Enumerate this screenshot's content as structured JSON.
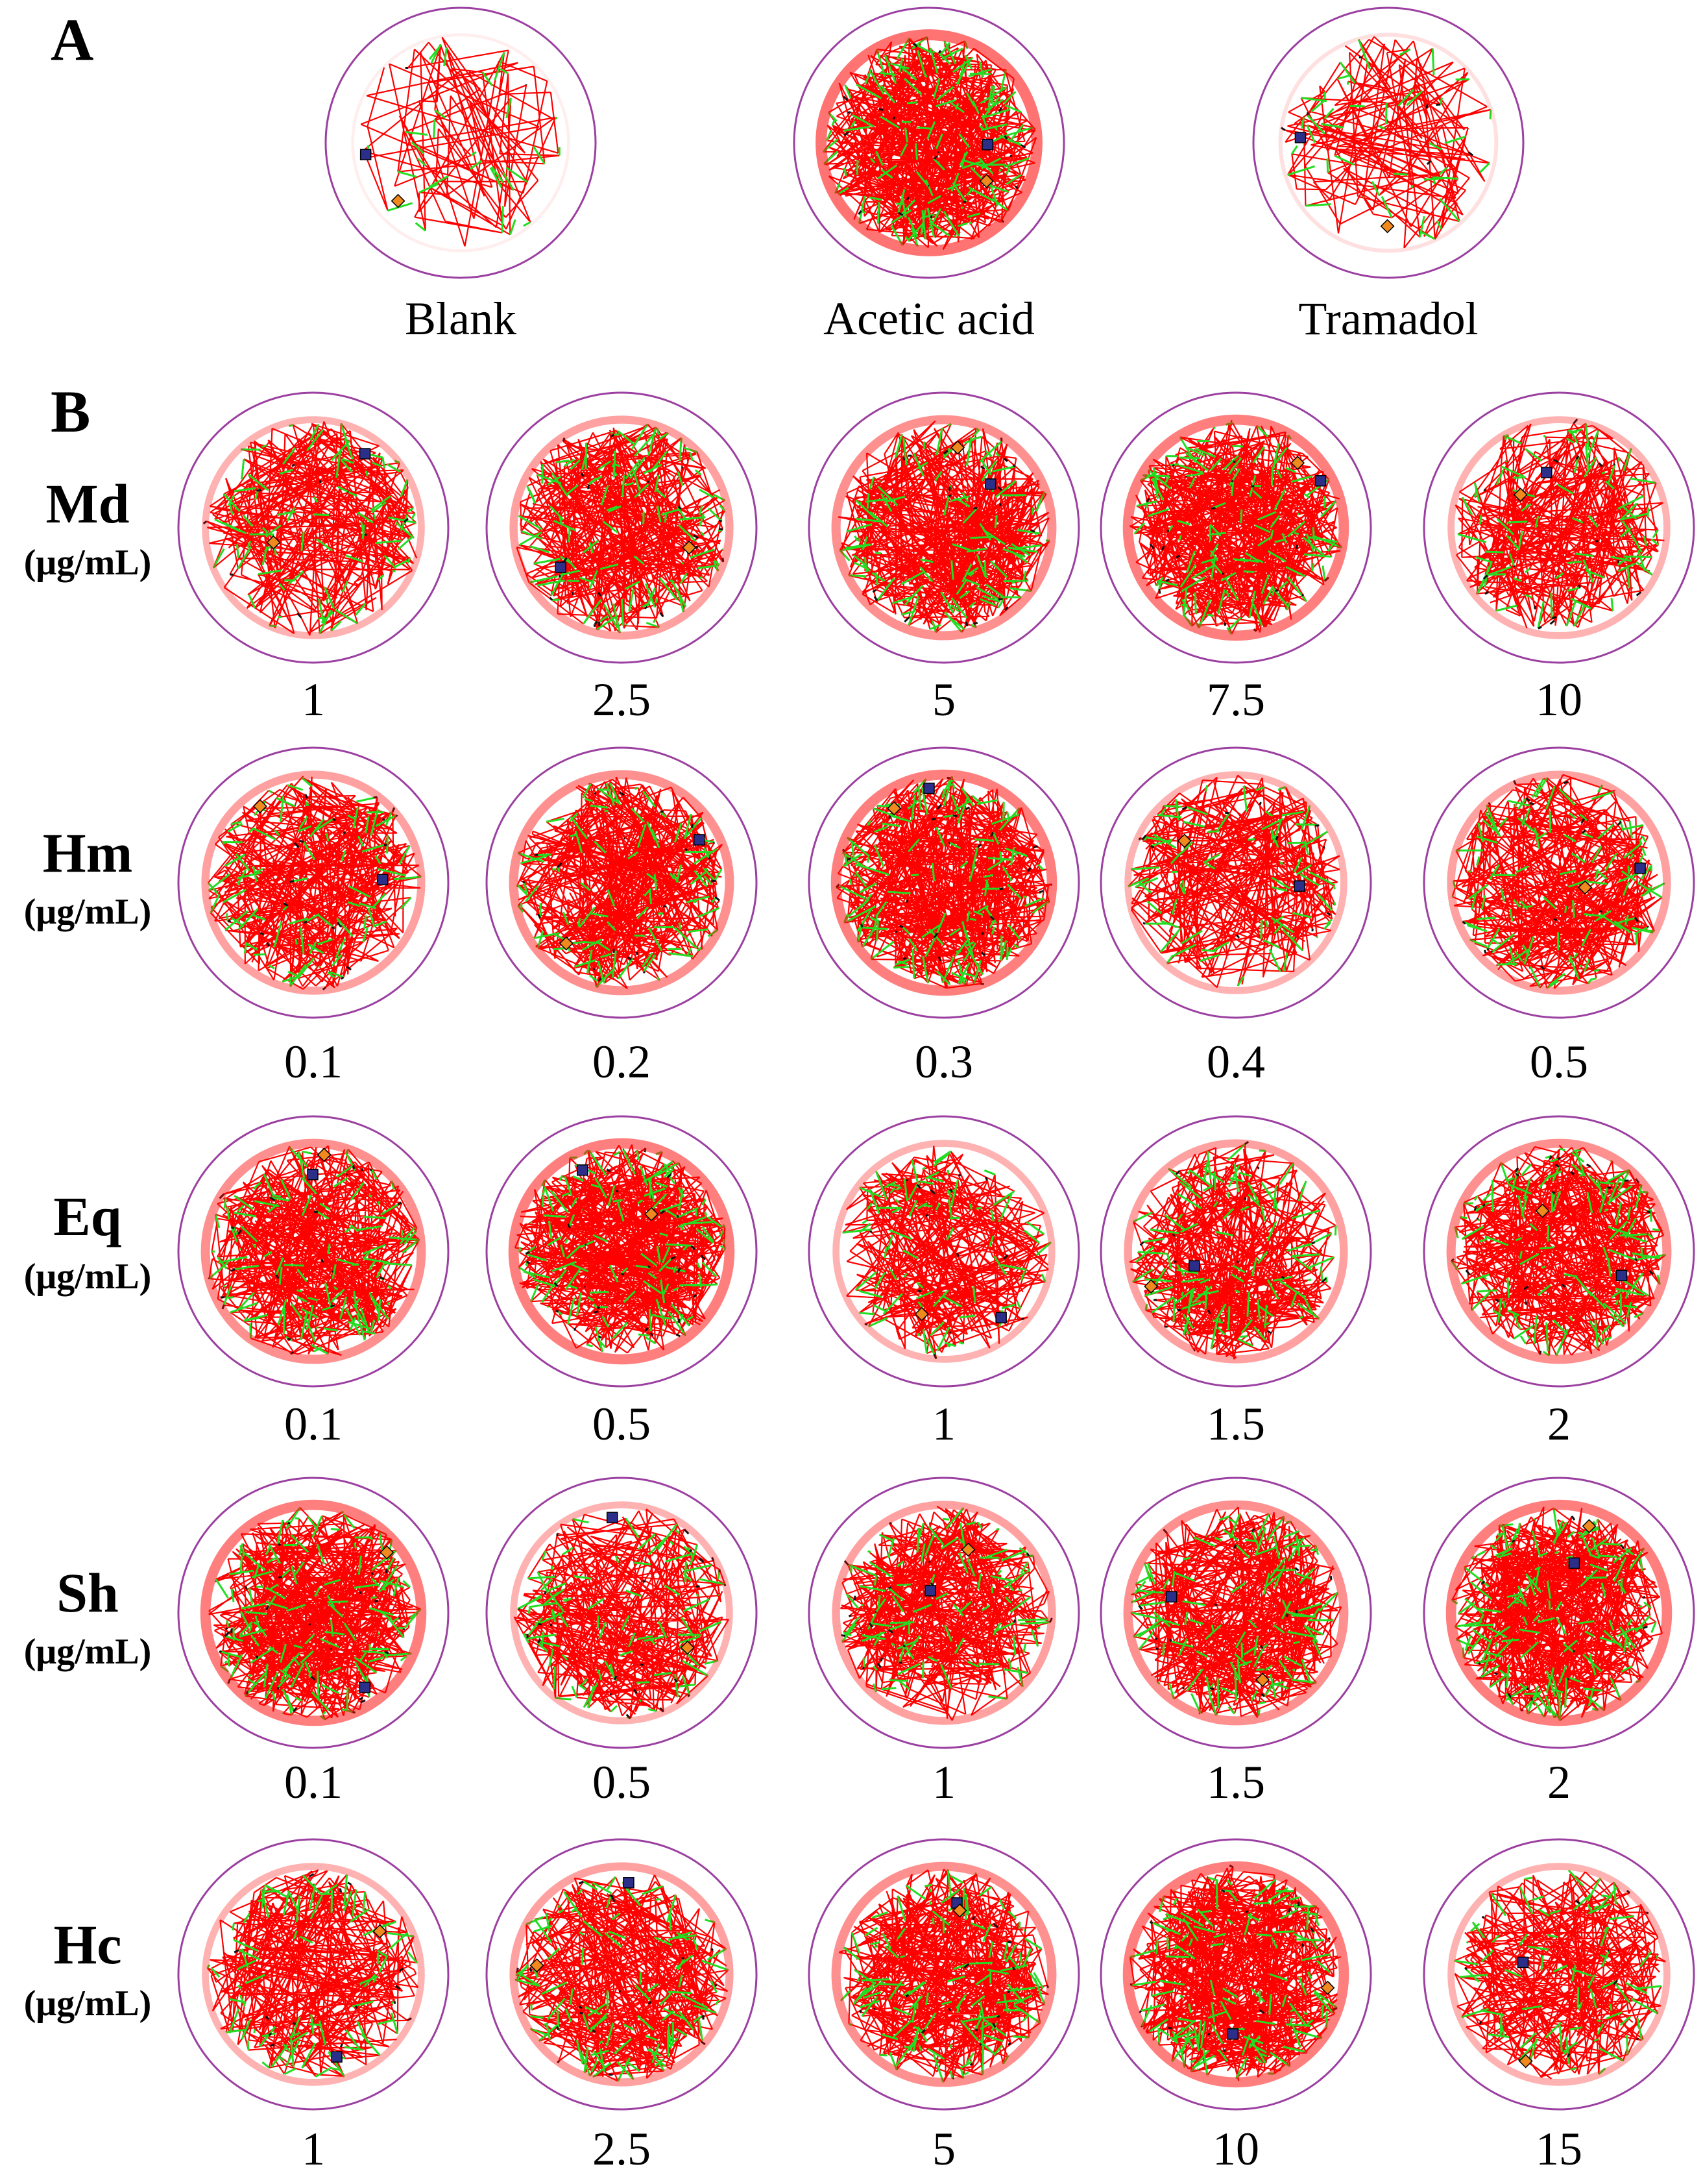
{
  "colors": {
    "arena_outline": "#9b3fa0",
    "track_main": "#ff0000",
    "track_secondary": "#22dd22",
    "track_dark": "#111111",
    "marker_start": "#2b2f8a",
    "marker_end": "#f08a1e"
  },
  "panel_a": {
    "label": "A",
    "arenas": [
      {
        "caption": "Blank",
        "density": 0.12
      },
      {
        "caption": "Acetic acid",
        "density": 1.0
      },
      {
        "caption": "Tramadol",
        "density": 0.22
      }
    ]
  },
  "panel_b": {
    "label": "B",
    "rows": [
      {
        "group": "Md",
        "unit": "(μg/mL)",
        "doses": [
          "1",
          "2.5",
          "5",
          "7.5",
          "10"
        ]
      },
      {
        "group": "Hm",
        "unit": "(μg/mL)",
        "doses": [
          "0.1",
          "0.2",
          "0.3",
          "0.4",
          "0.5"
        ]
      },
      {
        "group": "Eq",
        "unit": "(μg/mL)",
        "doses": [
          "0.1",
          "0.5",
          "1",
          "1.5",
          "2"
        ]
      },
      {
        "group": "Sh",
        "unit": "(μg/mL)",
        "doses": [
          "0.1",
          "0.5",
          "1",
          "1.5",
          "2"
        ]
      },
      {
        "group": "Hc",
        "unit": "(μg/mL)",
        "doses": [
          "1",
          "2.5",
          "5",
          "10",
          "15"
        ]
      }
    ]
  }
}
